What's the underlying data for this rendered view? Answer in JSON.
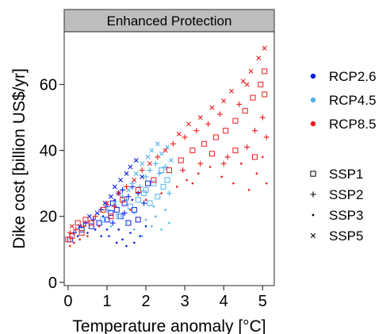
{
  "chart_data": {
    "type": "scatter",
    "facet_title": "Enhanced Protection",
    "xlabel": "Temperature anomaly [°C]",
    "ylabel": "Dike cost [billion US$/yr]",
    "xlim": [
      -0.1,
      5.3
    ],
    "ylim": [
      -1,
      76
    ],
    "x_ticks": [
      0,
      1,
      2,
      3,
      4,
      5
    ],
    "x_tick_labels": [
      "0",
      "1",
      "2",
      "3",
      "4",
      "5"
    ],
    "y_ticks": [
      0,
      20,
      40,
      60
    ],
    "y_tick_labels": [
      "0",
      "20",
      "40",
      "60"
    ],
    "grid": false,
    "legend_position": "right",
    "colors": {
      "RCP2.6": "#0b1ee6",
      "RCP4.5": "#4fb4f0",
      "RCP8.5": "#ec1c1c",
      "strip_fill": "#bdbdbd",
      "panel_border": "#4d4d4d"
    },
    "color_legend": [
      {
        "label": "RCP2.6",
        "color": "#0b1ee6"
      },
      {
        "label": "RCP4.5",
        "color": "#4fb4f0"
      },
      {
        "label": "RCP8.5",
        "color": "#ec1c1c"
      }
    ],
    "shape_legend": [
      {
        "label": "SSP1",
        "shape": "open-square"
      },
      {
        "label": "SSP2",
        "shape": "plus"
      },
      {
        "label": "SSP3",
        "shape": "dot"
      },
      {
        "label": "SSP5",
        "shape": "cross"
      }
    ],
    "series": [
      {
        "name": "RCP2.6",
        "color": "#0b1ee6",
        "points": [
          [
            0.05,
            13,
            "SSP1"
          ],
          [
            0.15,
            15,
            "SSP2"
          ],
          [
            0.25,
            14,
            "SSP3"
          ],
          [
            0.3,
            17,
            "SSP5"
          ],
          [
            0.35,
            16,
            "SSP1"
          ],
          [
            0.45,
            18,
            "SSP2"
          ],
          [
            0.5,
            15,
            "SSP3"
          ],
          [
            0.55,
            20,
            "SSP5"
          ],
          [
            0.6,
            17,
            "SSP1"
          ],
          [
            0.65,
            19,
            "SSP2"
          ],
          [
            0.7,
            16,
            "SSP3"
          ],
          [
            0.75,
            21,
            "SSP5"
          ],
          [
            0.8,
            18,
            "SSP1"
          ],
          [
            0.85,
            22,
            "SSP2"
          ],
          [
            0.9,
            20,
            "SSP3"
          ],
          [
            0.95,
            24,
            "SSP5"
          ],
          [
            1.0,
            19,
            "SSP1"
          ],
          [
            1.0,
            23,
            "SSP2"
          ],
          [
            1.05,
            14,
            "SSP3"
          ],
          [
            1.1,
            26,
            "SSP5"
          ],
          [
            1.1,
            21,
            "SSP1"
          ],
          [
            1.15,
            18,
            "SSP2"
          ],
          [
            1.2,
            25,
            "SSP3"
          ],
          [
            1.2,
            29,
            "SSP5"
          ],
          [
            1.25,
            12,
            "SSP3"
          ],
          [
            1.25,
            22,
            "SSP1"
          ],
          [
            1.3,
            27,
            "SSP2"
          ],
          [
            1.3,
            16,
            "SSP3"
          ],
          [
            1.35,
            31,
            "SSP5"
          ],
          [
            1.35,
            20,
            "SSP1"
          ],
          [
            1.4,
            13,
            "SSP3"
          ],
          [
            1.4,
            28,
            "SSP2"
          ],
          [
            1.45,
            24,
            "SSP1"
          ],
          [
            1.5,
            33,
            "SSP5"
          ],
          [
            1.5,
            11,
            "SSP3"
          ],
          [
            1.55,
            26,
            "SSP2"
          ],
          [
            1.55,
            18,
            "SSP1"
          ],
          [
            1.6,
            35,
            "SSP5"
          ],
          [
            1.6,
            15,
            "SSP3"
          ],
          [
            1.65,
            29,
            "SSP2"
          ],
          [
            1.7,
            22,
            "SSP1"
          ],
          [
            1.7,
            12,
            "SSP3"
          ],
          [
            1.75,
            37,
            "SSP5"
          ],
          [
            1.8,
            27,
            "SSP2"
          ],
          [
            1.8,
            19,
            "SSP1"
          ],
          [
            1.85,
            14,
            "SSP3"
          ],
          [
            1.9,
            32,
            "SSP5"
          ],
          [
            1.95,
            24,
            "SSP2"
          ],
          [
            2.0,
            17,
            "SSP3"
          ],
          [
            2.05,
            30,
            "SSP1"
          ],
          [
            1.15,
            24,
            "SSP1"
          ],
          [
            1.45,
            21,
            "SSP2"
          ],
          [
            1.65,
            25,
            "SSP3"
          ],
          [
            1.0,
            16,
            "SSP3"
          ],
          [
            0.85,
            14,
            "SSP3"
          ]
        ]
      },
      {
        "name": "RCP4.5",
        "color": "#4fb4f0",
        "points": [
          [
            0.9,
            19,
            "SSP1"
          ],
          [
            1.0,
            22,
            "SSP2"
          ],
          [
            1.1,
            17,
            "SSP3"
          ],
          [
            1.2,
            24,
            "SSP5"
          ],
          [
            1.3,
            20,
            "SSP1"
          ],
          [
            1.4,
            26,
            "SSP2"
          ],
          [
            1.5,
            18,
            "SSP3"
          ],
          [
            1.55,
            28,
            "SSP5"
          ],
          [
            1.6,
            23,
            "SSP1"
          ],
          [
            1.65,
            30,
            "SSP2"
          ],
          [
            1.7,
            16,
            "SSP3"
          ],
          [
            1.75,
            33,
            "SSP5"
          ],
          [
            1.8,
            25,
            "SSP1"
          ],
          [
            1.85,
            29,
            "SSP2"
          ],
          [
            1.9,
            14,
            "SSP3"
          ],
          [
            1.9,
            36,
            "SSP5"
          ],
          [
            1.95,
            27,
            "SSP1"
          ],
          [
            2.0,
            32,
            "SSP2"
          ],
          [
            2.0,
            19,
            "SSP3"
          ],
          [
            2.05,
            38,
            "SSP5"
          ],
          [
            2.1,
            24,
            "SSP1"
          ],
          [
            2.1,
            34,
            "SSP2"
          ],
          [
            2.15,
            17,
            "SSP3"
          ],
          [
            2.15,
            40,
            "SSP5"
          ],
          [
            2.2,
            30,
            "SSP1"
          ],
          [
            2.25,
            36,
            "SSP2"
          ],
          [
            2.25,
            20,
            "SSP3"
          ],
          [
            2.3,
            42,
            "SSP5"
          ],
          [
            2.3,
            26,
            "SSP1"
          ],
          [
            2.35,
            33,
            "SSP2"
          ],
          [
            2.4,
            16,
            "SSP3"
          ],
          [
            2.4,
            39,
            "SSP5"
          ],
          [
            2.45,
            29,
            "SSP1"
          ],
          [
            2.5,
            35,
            "SSP2"
          ],
          [
            2.5,
            22,
            "SSP3"
          ],
          [
            2.55,
            41,
            "SSP5"
          ],
          [
            2.55,
            31,
            "SSP1"
          ],
          [
            2.6,
            27,
            "SSP2"
          ],
          [
            2.6,
            18,
            "SSP3"
          ],
          [
            2.65,
            37,
            "SSP5"
          ],
          [
            1.5,
            25,
            "SSP2"
          ],
          [
            1.7,
            21,
            "SSP3"
          ],
          [
            2.0,
            28,
            "SSP1"
          ],
          [
            2.2,
            23,
            "SSP3"
          ],
          [
            2.4,
            34,
            "SSP1"
          ]
        ]
      },
      {
        "name": "RCP8.5",
        "color": "#ec1c1c",
        "points": [
          [
            0.0,
            13,
            "SSP1"
          ],
          [
            0.05,
            15,
            "SSP2"
          ],
          [
            0.05,
            11,
            "SSP3"
          ],
          [
            0.1,
            17,
            "SSP5"
          ],
          [
            0.1,
            14,
            "SSP1"
          ],
          [
            0.15,
            12,
            "SSP3"
          ],
          [
            0.2,
            16,
            "SSP2"
          ],
          [
            0.25,
            18,
            "SSP1"
          ],
          [
            0.3,
            13,
            "SSP3"
          ],
          [
            0.35,
            15,
            "SSP1"
          ],
          [
            0.4,
            17,
            "SSP2"
          ],
          [
            0.45,
            19,
            "SSP1"
          ],
          [
            0.5,
            14,
            "SSP3"
          ],
          [
            0.6,
            18,
            "SSP1"
          ],
          [
            0.7,
            20,
            "SSP2"
          ],
          [
            0.8,
            17,
            "SSP3"
          ],
          [
            0.9,
            22,
            "SSP1"
          ],
          [
            1.0,
            24,
            "SSP5"
          ],
          [
            1.1,
            20,
            "SSP1"
          ],
          [
            1.2,
            23,
            "SSP2"
          ],
          [
            1.3,
            27,
            "SSP5"
          ],
          [
            1.4,
            25,
            "SSP1"
          ],
          [
            1.5,
            29,
            "SSP2"
          ],
          [
            1.6,
            22,
            "SSP3"
          ],
          [
            1.7,
            31,
            "SSP5"
          ],
          [
            1.8,
            28,
            "SSP1"
          ],
          [
            1.9,
            34,
            "SSP2"
          ],
          [
            2.0,
            25,
            "SSP3"
          ],
          [
            2.1,
            36,
            "SSP5"
          ],
          [
            2.2,
            31,
            "SSP1"
          ],
          [
            2.3,
            38,
            "SSP2"
          ],
          [
            2.4,
            27,
            "SSP3"
          ],
          [
            2.5,
            40,
            "SSP5"
          ],
          [
            2.6,
            34,
            "SSP1"
          ],
          [
            2.7,
            42,
            "SSP2"
          ],
          [
            2.8,
            29,
            "SSP3"
          ],
          [
            2.85,
            45,
            "SSP5"
          ],
          [
            2.9,
            37,
            "SSP1"
          ],
          [
            3.0,
            44,
            "SSP2"
          ],
          [
            3.05,
            31,
            "SSP3"
          ],
          [
            3.1,
            48,
            "SSP5"
          ],
          [
            3.2,
            40,
            "SSP1"
          ],
          [
            3.3,
            46,
            "SSP2"
          ],
          [
            3.35,
            33,
            "SSP3"
          ],
          [
            3.4,
            50,
            "SSP5"
          ],
          [
            3.5,
            42,
            "SSP1"
          ],
          [
            3.6,
            48,
            "SSP2"
          ],
          [
            3.65,
            35,
            "SSP3"
          ],
          [
            3.7,
            53,
            "SSP5"
          ],
          [
            3.8,
            44,
            "SSP1"
          ],
          [
            3.9,
            51,
            "SSP2"
          ],
          [
            3.95,
            32,
            "SSP3"
          ],
          [
            4.0,
            55,
            "SSP5"
          ],
          [
            4.05,
            46,
            "SSP1"
          ],
          [
            4.1,
            38,
            "SSP2"
          ],
          [
            4.2,
            58,
            "SSP5"
          ],
          [
            4.25,
            30,
            "SSP3"
          ],
          [
            4.3,
            49,
            "SSP1"
          ],
          [
            4.4,
            54,
            "SSP2"
          ],
          [
            4.45,
            36,
            "SSP3"
          ],
          [
            4.5,
            61,
            "SSP5"
          ],
          [
            4.55,
            52,
            "SSP1"
          ],
          [
            4.6,
            41,
            "SSP2"
          ],
          [
            4.65,
            28,
            "SSP3"
          ],
          [
            4.7,
            64,
            "SSP5"
          ],
          [
            4.75,
            56,
            "SSP1"
          ],
          [
            4.8,
            46,
            "SSP2"
          ],
          [
            4.85,
            33,
            "SSP3"
          ],
          [
            4.9,
            68,
            "SSP5"
          ],
          [
            4.95,
            60,
            "SSP1"
          ],
          [
            5.0,
            50,
            "SSP2"
          ],
          [
            5.0,
            38,
            "SSP3"
          ],
          [
            5.05,
            71,
            "SSP5"
          ],
          [
            5.05,
            64,
            "SSP1"
          ],
          [
            5.1,
            44,
            "SSP2"
          ],
          [
            5.1,
            30,
            "SSP3"
          ],
          [
            4.3,
            40,
            "SSP1"
          ],
          [
            4.0,
            36,
            "SSP2"
          ],
          [
            3.7,
            39,
            "SSP1"
          ],
          [
            3.4,
            36,
            "SSP2"
          ],
          [
            4.8,
            38,
            "SSP1"
          ],
          [
            5.05,
            57,
            "SSP1"
          ],
          [
            4.6,
            60,
            "SSP5"
          ],
          [
            3.2,
            30,
            "SSP3"
          ],
          [
            2.95,
            34,
            "SSP2"
          ]
        ]
      }
    ]
  }
}
